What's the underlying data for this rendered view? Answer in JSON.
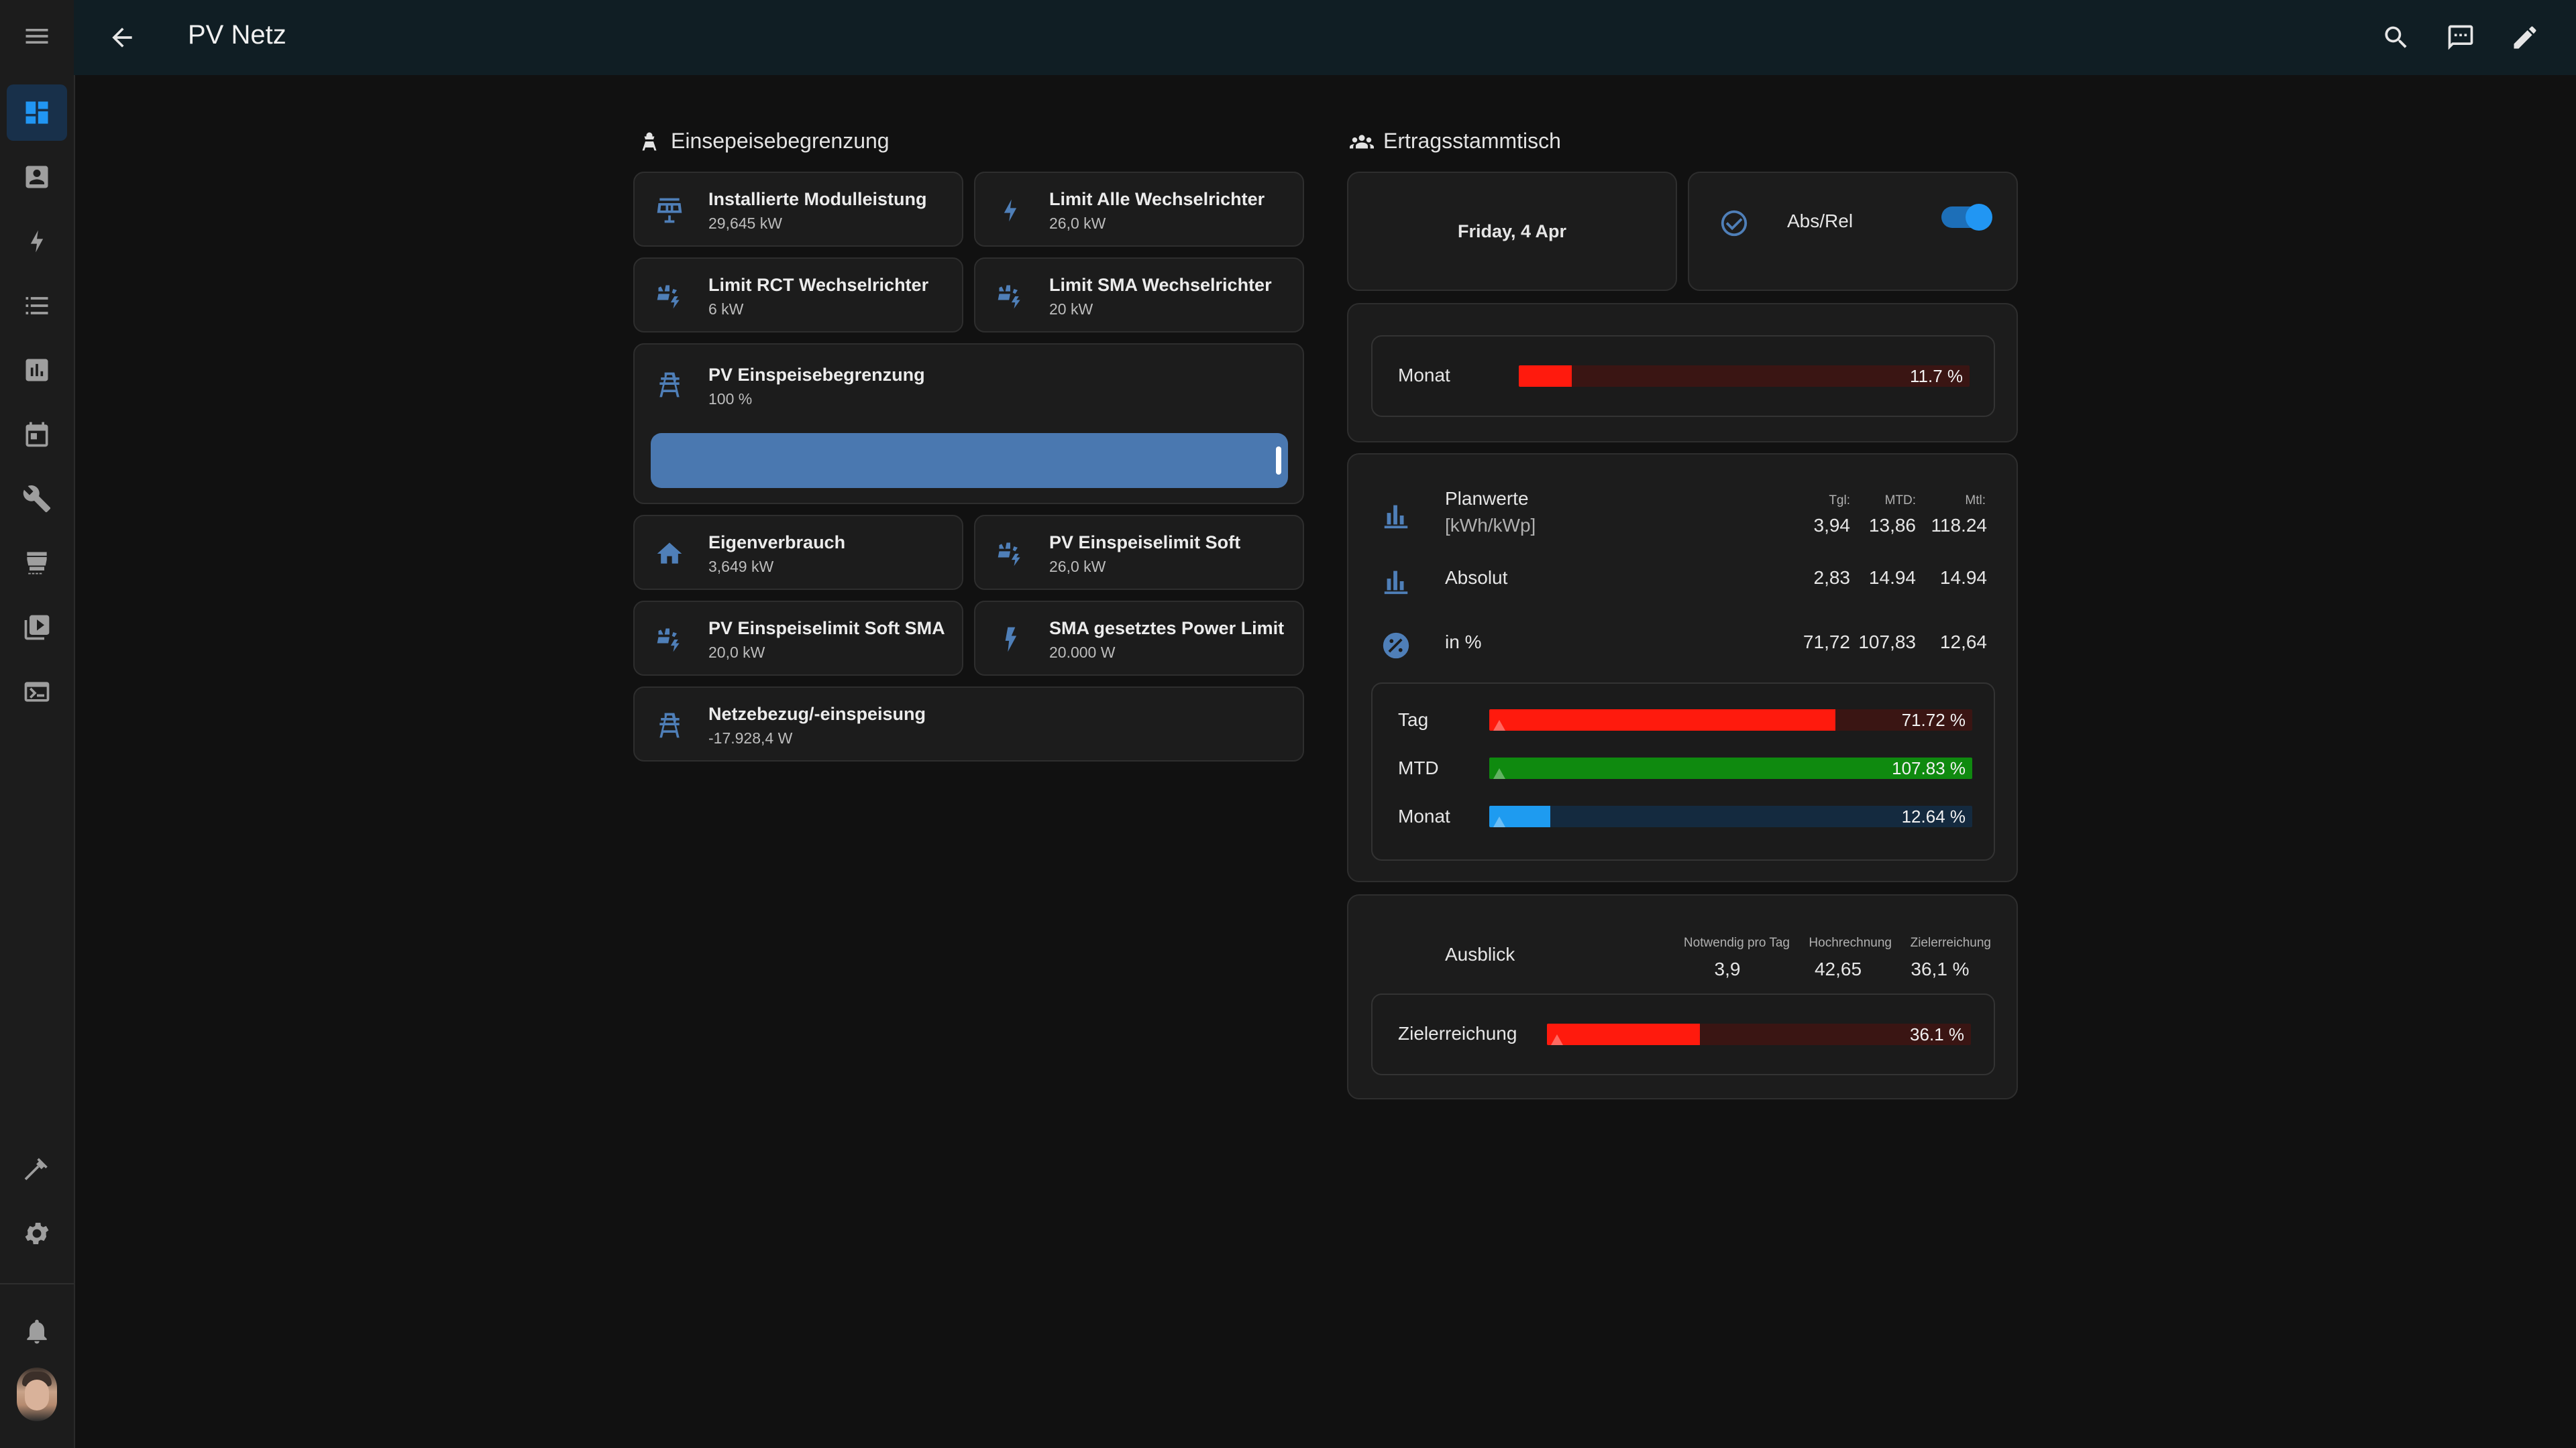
{
  "header": {
    "title": "PV Netz"
  },
  "sidebar": {
    "items": [
      "menu",
      "dashboard",
      "person",
      "energy",
      "logbook",
      "history",
      "calendar",
      "hacs-tools",
      "hacs",
      "media",
      "terminal"
    ],
    "bottom": [
      "developer-tools",
      "settings",
      "notifications",
      "profile"
    ]
  },
  "left": {
    "title": "Einsepeisebegrenzung",
    "tiles": [
      {
        "name": "Installierte Modulleistung",
        "value": "29,645 kW"
      },
      {
        "name": "Limit Alle Wechselrichter",
        "value": "26,0 kW"
      },
      {
        "name": "Limit RCT Wechselrichter",
        "value": "6 kW"
      },
      {
        "name": "Limit SMA Wechselrichter",
        "value": "20 kW"
      },
      {
        "name": "PV Einspeisebegrenzung",
        "value": "100 %",
        "slider_percent": 100
      },
      {
        "name": "Eigenverbrauch",
        "value": "3,649 kW"
      },
      {
        "name": "PV Einspeiselimit Soft",
        "value": "26,0 kW"
      },
      {
        "name": "PV Einspeiselimit Soft SMA",
        "value": "20,0 kW"
      },
      {
        "name": "SMA gesetztes Power Limit",
        "value": "20.000 W"
      },
      {
        "name": "Netzebezug/-einspeisung",
        "value": "-17.928,4 W"
      }
    ]
  },
  "right": {
    "title": "Ertragsstammtisch",
    "date": "Friday, 4 Apr",
    "toggle_label": "Abs/Rel",
    "toggle_on": true,
    "monat_bar": {
      "label": "Monat",
      "text": "11.7 %",
      "percent": 11.7,
      "color": "#ff1a0d",
      "track": "#3a1513"
    },
    "stats": {
      "col_headers": [
        "Tgl:",
        "MTD:",
        "Mtl:"
      ],
      "rows": [
        {
          "label": "Planwerte",
          "sublabel": "[kWh/kWp]",
          "values": [
            "3,94",
            "13,86",
            "118.24"
          ]
        },
        {
          "label": "Absolut",
          "values": [
            "2,83",
            "14.94",
            "14.94"
          ]
        },
        {
          "label": "in %",
          "values": [
            "71,72",
            "107,83",
            "12,64"
          ]
        }
      ]
    },
    "bars": [
      {
        "label": "Tag",
        "text": "71.72 %",
        "percent": 71.72,
        "color": "#ff1a0d",
        "track": "#3a1513"
      },
      {
        "label": "MTD",
        "text": "107.83 %",
        "percent": 100,
        "color": "#0f8a0f",
        "track": "#133a13"
      },
      {
        "label": "Monat",
        "text": "12.64 %",
        "percent": 12.64,
        "color": "#1e9bf0",
        "track": "#142a3f"
      }
    ],
    "ausblick": {
      "title": "Ausblick",
      "headers": [
        "Notwendig pro Tag",
        "Hochrechnung",
        "Zielerreichung"
      ],
      "values": [
        "3,9",
        "42,65",
        "36,1 %"
      ],
      "bar": {
        "label": "Zielerreichung",
        "text": "36.1 %",
        "percent": 36.1,
        "color": "#ff1a0d",
        "track": "#3a1513"
      }
    }
  }
}
